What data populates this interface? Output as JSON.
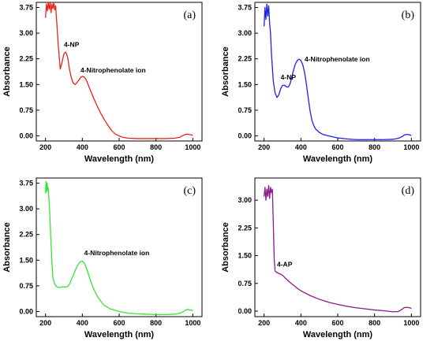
{
  "chart_data": [
    {
      "type": "line",
      "panel_label": "(a)",
      "color": "#e8231b",
      "xlabel": "Wavelength (nm)",
      "ylabel": "Absorbance",
      "xlim": [
        150,
        1050
      ],
      "ylim": [
        -0.15,
        3.9
      ],
      "xticks": [
        200,
        400,
        600,
        800,
        1000
      ],
      "xtick_labels": [
        "200",
        "400",
        "600",
        "800",
        "1000"
      ],
      "yticks": [
        0,
        0.75,
        1.5,
        2.25,
        3.0,
        3.75
      ],
      "ytick_labels": [
        "0.00",
        "0.75",
        "1.50",
        "2.25",
        "3.00",
        "3.75"
      ],
      "annotations": [
        {
          "text": "4-NP",
          "x": 300,
          "y": 2.6
        },
        {
          "text": "4-Nitrophenolate ion",
          "x": 390,
          "y": 1.85
        }
      ],
      "series": [
        {
          "x": [
            200,
            205,
            210,
            215,
            220,
            225,
            230,
            235,
            240,
            245,
            250,
            255,
            260,
            270,
            280,
            290,
            300,
            310,
            320,
            330,
            340,
            350,
            360,
            370,
            380,
            390,
            400,
            410,
            420,
            430,
            440,
            460,
            480,
            500,
            520,
            540,
            560,
            580,
            600,
            620,
            650,
            700,
            750,
            800,
            850,
            900,
            930,
            950,
            960,
            970,
            980,
            990,
            1000
          ],
          "y": [
            3.45,
            3.85,
            3.65,
            3.9,
            3.7,
            3.88,
            3.6,
            3.85,
            3.72,
            3.9,
            3.68,
            3.8,
            3.4,
            2.6,
            1.95,
            2.15,
            2.4,
            2.45,
            2.3,
            1.95,
            1.7,
            1.55,
            1.5,
            1.55,
            1.62,
            1.7,
            1.74,
            1.72,
            1.65,
            1.52,
            1.38,
            1.12,
            0.88,
            0.66,
            0.47,
            0.3,
            0.15,
            0.05,
            0.0,
            -0.04,
            -0.07,
            -0.08,
            -0.08,
            -0.08,
            -0.08,
            -0.07,
            -0.04,
            0.02,
            0.04,
            0.05,
            0.04,
            0.03,
            0.01
          ]
        }
      ]
    },
    {
      "type": "line",
      "panel_label": "(b)",
      "color": "#1f1fe6",
      "xlabel": "Wavelength (nm)",
      "ylabel": "Absorbance",
      "xlim": [
        150,
        1050
      ],
      "ylim": [
        -0.15,
        3.9
      ],
      "xticks": [
        200,
        400,
        600,
        800,
        1000
      ],
      "xtick_labels": [
        "200",
        "400",
        "600",
        "800",
        "1000"
      ],
      "yticks": [
        0,
        0.75,
        1.5,
        2.25,
        3.0,
        3.75
      ],
      "ytick_labels": [
        "0.00",
        "0.75",
        "1.50",
        "2.25",
        "3.00",
        "3.75"
      ],
      "annotations": [
        {
          "text": "4-NP",
          "x": 290,
          "y": 1.65
        },
        {
          "text": "4-Nitrophenolate ion",
          "x": 420,
          "y": 2.17
        }
      ],
      "series": [
        {
          "x": [
            200,
            205,
            210,
            215,
            220,
            225,
            230,
            235,
            240,
            250,
            260,
            270,
            280,
            290,
            300,
            310,
            320,
            330,
            340,
            350,
            360,
            370,
            380,
            390,
            400,
            410,
            420,
            430,
            440,
            450,
            460,
            470,
            480,
            500,
            520,
            550,
            600,
            650,
            700,
            750,
            800,
            850,
            900,
            930,
            950,
            960,
            970,
            980,
            990,
            1000
          ],
          "y": [
            3.2,
            3.75,
            3.4,
            3.85,
            3.5,
            3.8,
            3.3,
            3.0,
            2.4,
            1.6,
            1.25,
            1.12,
            1.2,
            1.38,
            1.47,
            1.48,
            1.44,
            1.42,
            1.5,
            1.7,
            1.92,
            2.1,
            2.2,
            2.24,
            2.2,
            2.08,
            1.85,
            1.5,
            1.1,
            0.72,
            0.45,
            0.3,
            0.2,
            0.1,
            0.04,
            0.0,
            -0.06,
            -0.09,
            -0.11,
            -0.11,
            -0.11,
            -0.11,
            -0.1,
            -0.07,
            -0.02,
            0.02,
            0.04,
            0.04,
            0.03,
            0.01
          ]
        }
      ]
    },
    {
      "type": "line",
      "panel_label": "(c)",
      "color": "#33e633",
      "xlabel": "Wavelength (nm)",
      "ylabel": "Absorbance",
      "xlim": [
        150,
        1050
      ],
      "ylim": [
        -0.15,
        3.9
      ],
      "xticks": [
        200,
        400,
        600,
        800,
        1000
      ],
      "xtick_labels": [
        "200",
        "400",
        "600",
        "800",
        "1000"
      ],
      "yticks": [
        0,
        0.75,
        1.5,
        2.25,
        3.0,
        3.75
      ],
      "ytick_labels": [
        "0.00",
        "0.75",
        "1.50",
        "2.25",
        "3.00",
        "3.75"
      ],
      "annotations": [
        {
          "text": "4-Nitrophenolate ion",
          "x": 410,
          "y": 1.65
        }
      ],
      "series": [
        {
          "x": [
            200,
            203,
            206,
            209,
            212,
            215,
            218,
            222,
            226,
            230,
            235,
            240,
            250,
            260,
            270,
            280,
            290,
            300,
            310,
            320,
            330,
            340,
            350,
            360,
            370,
            380,
            390,
            400,
            410,
            420,
            430,
            440,
            450,
            460,
            480,
            500,
            520,
            550,
            600,
            650,
            700,
            750,
            800,
            850,
            900,
            930,
            950,
            960,
            970,
            980,
            990,
            1000
          ],
          "y": [
            3.45,
            3.8,
            3.5,
            3.75,
            3.55,
            3.6,
            3.3,
            3.0,
            2.5,
            2.0,
            1.4,
            1.0,
            0.8,
            0.73,
            0.7,
            0.71,
            0.72,
            0.72,
            0.71,
            0.73,
            0.8,
            0.92,
            1.05,
            1.18,
            1.3,
            1.4,
            1.46,
            1.47,
            1.42,
            1.3,
            1.15,
            0.98,
            0.82,
            0.68,
            0.46,
            0.3,
            0.18,
            0.08,
            0.0,
            -0.05,
            -0.07,
            -0.08,
            -0.09,
            -0.09,
            -0.08,
            -0.05,
            0.0,
            0.04,
            0.06,
            0.05,
            0.04,
            0.02
          ]
        }
      ]
    },
    {
      "type": "line",
      "panel_label": "(d)",
      "color": "#8b1a8b",
      "xlabel": "Wavelength (nm)",
      "ylabel": "Absorbance",
      "xlim": [
        150,
        1050
      ],
      "ylim": [
        -0.15,
        3.6
      ],
      "xticks": [
        200,
        400,
        600,
        800,
        1000
      ],
      "xtick_labels": [
        "200",
        "400",
        "600",
        "800",
        "1000"
      ],
      "yticks": [
        0,
        0.75,
        1.5,
        2.25,
        3.0
      ],
      "ytick_labels": [
        "0.00",
        "0.75",
        "1.50",
        "2.25",
        "3.00"
      ],
      "annotations": [
        {
          "text": "4-AP",
          "x": 270,
          "y": 1.2
        }
      ],
      "series": [
        {
          "x": [
            200,
            205,
            210,
            215,
            220,
            225,
            230,
            235,
            240,
            245,
            250,
            255,
            260,
            270,
            280,
            290,
            300,
            320,
            340,
            360,
            380,
            400,
            450,
            500,
            550,
            600,
            650,
            700,
            750,
            800,
            850,
            900,
            930,
            950,
            960,
            970,
            980,
            990,
            1000
          ],
          "y": [
            3.1,
            3.35,
            3.0,
            3.3,
            3.1,
            3.4,
            3.05,
            3.35,
            3.2,
            3.3,
            2.4,
            1.4,
            1.08,
            1.04,
            1.02,
            1.0,
            0.97,
            0.87,
            0.78,
            0.7,
            0.62,
            0.55,
            0.42,
            0.32,
            0.24,
            0.18,
            0.13,
            0.09,
            0.06,
            0.03,
            0.01,
            -0.02,
            -0.01,
            0.05,
            0.09,
            0.1,
            0.1,
            0.09,
            0.07
          ]
        }
      ]
    }
  ]
}
